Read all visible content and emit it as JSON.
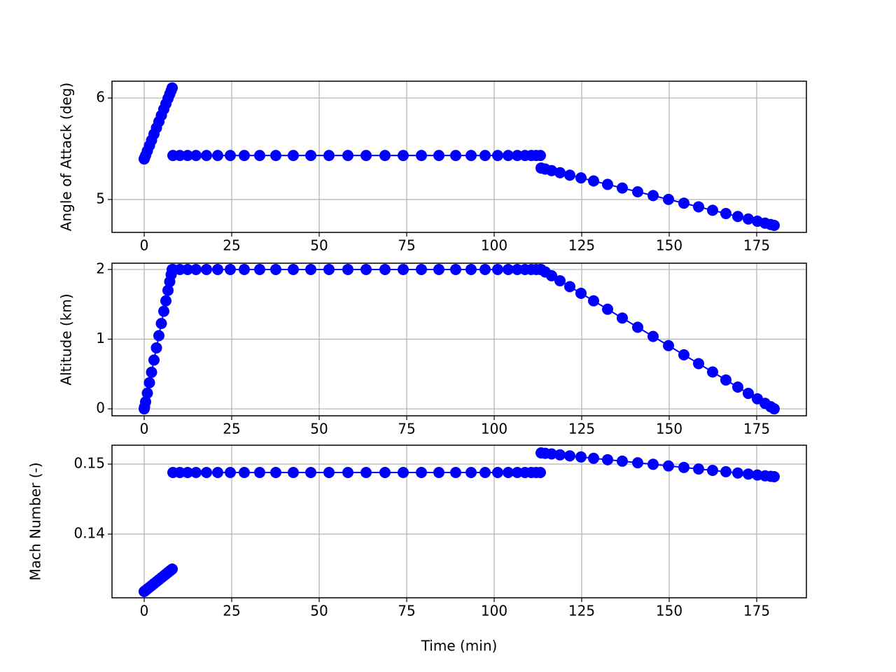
{
  "chart_data": [
    {
      "type": "line",
      "y_label": "Angle of Attack (deg)",
      "marker": "o",
      "grid": true,
      "xlim": [
        -9.2,
        189.2
      ],
      "xticks": [
        0,
        25,
        50,
        75,
        100,
        125,
        150,
        175
      ],
      "ylim": [
        4.676,
        6.166
      ],
      "yticks": [
        5,
        6
      ],
      "series": [
        {
          "color": "#0000ff",
          "x": [
            0,
            0.1,
            0.4,
            0.9,
            1.5,
            2.1,
            2.8,
            3.5,
            4.2,
            4.9,
            5.6,
            6.2,
            6.8,
            7.3,
            7.7,
            8.0
          ],
          "values": [
            5.4,
            5.409,
            5.435,
            5.479,
            5.531,
            5.584,
            5.645,
            5.706,
            5.768,
            5.829,
            5.89,
            5.943,
            5.995,
            6.039,
            6.074,
            6.1
          ]
        },
        {
          "color": "#0000ff",
          "x": [
            8.2,
            10.2,
            12.4,
            14.8,
            17.8,
            21,
            24.6,
            28.6,
            33,
            37.6,
            42.6,
            47.6,
            52.8,
            58.2,
            63.4,
            68.8,
            74,
            79.2,
            84.2,
            89,
            93.4,
            97.4,
            101,
            104,
            106.6,
            108.8,
            110.6,
            112,
            113.2
          ],
          "values": [
            5.434,
            5.434,
            5.434,
            5.434,
            5.434,
            5.434,
            5.434,
            5.434,
            5.434,
            5.434,
            5.434,
            5.434,
            5.434,
            5.434,
            5.434,
            5.434,
            5.434,
            5.434,
            5.434,
            5.434,
            5.434,
            5.434,
            5.434,
            5.434,
            5.434,
            5.434,
            5.434,
            5.434,
            5.434
          ]
        },
        {
          "color": "#0000ff",
          "x": [
            113.4,
            114.6,
            116.4,
            118.8,
            121.6,
            124.8,
            128.4,
            132.4,
            136.6,
            141,
            145.4,
            149.8,
            154.2,
            158.4,
            162.4,
            166.2,
            169.6,
            172.6,
            175.2,
            177.4,
            179,
            180
          ],
          "values": [
            5.31,
            5.3,
            5.285,
            5.264,
            5.24,
            5.213,
            5.183,
            5.149,
            5.113,
            5.076,
            5.039,
            5.001,
            4.964,
            4.928,
            4.894,
            4.862,
            4.833,
            4.808,
            4.786,
            4.767,
            4.754,
            4.745
          ]
        }
      ]
    },
    {
      "type": "line",
      "y_label": "Altitude (km)",
      "marker": "o",
      "grid": true,
      "xlim": [
        -9.2,
        189.2
      ],
      "xticks": [
        0,
        25,
        50,
        75,
        100,
        125,
        150,
        175
      ],
      "ylim": [
        -0.1,
        2.09
      ],
      "yticks": [
        0,
        1,
        2
      ],
      "series": [
        {
          "color": "#0000ff",
          "x": [
            0,
            0.1,
            0.4,
            0.9,
            1.5,
            2.1,
            2.8,
            3.5,
            4.2,
            4.9,
            5.6,
            6.2,
            6.8,
            7.3,
            7.7,
            8.0
          ],
          "values": [
            0,
            0.025,
            0.1,
            0.225,
            0.375,
            0.525,
            0.7,
            0.875,
            1.05,
            1.225,
            1.4,
            1.55,
            1.7,
            1.825,
            1.925,
            2.0
          ]
        },
        {
          "color": "#0000ff",
          "x": [
            8.2,
            10.2,
            12.4,
            14.8,
            17.8,
            21,
            24.6,
            28.6,
            33,
            37.6,
            42.6,
            47.6,
            52.8,
            58.2,
            63.4,
            68.8,
            74,
            79.2,
            84.2,
            89,
            93.4,
            97.4,
            101,
            104,
            106.6,
            108.8,
            110.6,
            112,
            113.2
          ],
          "values": [
            2,
            2,
            2,
            2,
            2,
            2,
            2,
            2,
            2,
            2,
            2,
            2,
            2,
            2,
            2,
            2,
            2,
            2,
            2,
            2,
            2,
            2,
            2,
            2,
            2,
            2,
            2,
            2,
            2
          ]
        },
        {
          "color": "#0000ff",
          "x": [
            113.4,
            114.6,
            116.4,
            118.8,
            121.6,
            124.8,
            128.4,
            132.4,
            136.6,
            141,
            145.4,
            149.8,
            154.2,
            158.4,
            162.4,
            166.2,
            169.6,
            172.6,
            175.2,
            177.4,
            179,
            180
          ],
          "values": [
            2.0,
            1.964,
            1.91,
            1.838,
            1.754,
            1.658,
            1.55,
            1.429,
            1.303,
            1.171,
            1.039,
            0.907,
            0.775,
            0.649,
            0.529,
            0.414,
            0.312,
            0.222,
            0.144,
            0.078,
            0.03,
            0.0
          ]
        }
      ]
    },
    {
      "type": "line",
      "y_label": "Mach Number (-)",
      "x_label": "Time (min)",
      "marker": "o",
      "grid": true,
      "xlim": [
        -9.2,
        189.2
      ],
      "xticks": [
        0,
        25,
        50,
        75,
        100,
        125,
        150,
        175
      ],
      "ylim": [
        0.1309,
        0.1527
      ],
      "yticks": [
        0.14,
        0.15
      ],
      "series": [
        {
          "color": "#0000ff",
          "x": [
            0,
            0.1,
            0.4,
            0.9,
            1.5,
            2.1,
            2.8,
            3.5,
            4.2,
            4.9,
            5.6,
            6.2,
            6.8,
            7.3,
            7.7,
            8.0
          ],
          "values": [
            0.1318,
            0.13184,
            0.13196,
            0.13216,
            0.1324,
            0.13264,
            0.13292,
            0.1332,
            0.13348,
            0.13376,
            0.13404,
            0.13428,
            0.13452,
            0.13472,
            0.13488,
            0.135
          ]
        },
        {
          "color": "#0000ff",
          "x": [
            8.2,
            10.2,
            12.4,
            14.8,
            17.8,
            21,
            24.6,
            28.6,
            33,
            37.6,
            42.6,
            47.6,
            52.8,
            58.2,
            63.4,
            68.8,
            74,
            79.2,
            84.2,
            89,
            93.4,
            97.4,
            101,
            104,
            106.6,
            108.8,
            110.6,
            112,
            113.2
          ],
          "values": [
            0.1488,
            0.1488,
            0.1488,
            0.1488,
            0.1488,
            0.1488,
            0.1488,
            0.1488,
            0.1488,
            0.1488,
            0.1488,
            0.1488,
            0.1488,
            0.1488,
            0.1488,
            0.1488,
            0.1488,
            0.1488,
            0.1488,
            0.1488,
            0.1488,
            0.1488,
            0.1488,
            0.1488,
            0.1488,
            0.1488,
            0.1488,
            0.1488,
            0.1488
          ]
        },
        {
          "color": "#0000ff",
          "x": [
            113.4,
            114.6,
            116.4,
            118.8,
            121.6,
            124.8,
            128.4,
            132.4,
            136.6,
            141,
            145.4,
            149.8,
            154.2,
            158.4,
            162.4,
            166.2,
            169.6,
            172.6,
            175.2,
            177.4,
            179,
            180
          ],
          "values": [
            0.1516,
            0.15154,
            0.15145,
            0.15132,
            0.15118,
            0.15102,
            0.15083,
            0.15063,
            0.15042,
            0.15019,
            0.14997,
            0.14974,
            0.14952,
            0.1493,
            0.1491,
            0.14891,
            0.14873,
            0.14858,
            0.14844,
            0.14833,
            0.14825,
            0.1482
          ]
        }
      ]
    }
  ]
}
